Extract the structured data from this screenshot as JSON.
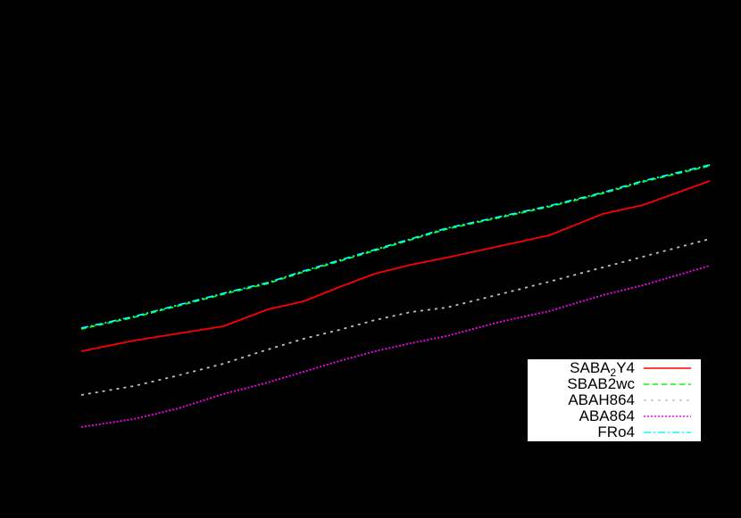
{
  "chart_data": {
    "type": "line",
    "title": "",
    "xlabel": "",
    "ylabel": "",
    "grid": false,
    "legend_position": "lower right",
    "note": "Axes, ticks and labels are not visible (black on black); values given in plot pixel coordinates (x: left→right, y: higher value = higher on screen, measured as 581 - pixel_y).",
    "x": [
      91,
      150,
      200,
      250,
      300,
      340,
      380,
      420,
      460,
      500,
      560,
      615,
      675,
      720,
      795
    ],
    "series": [
      {
        "name": "SABA2Y4",
        "color": "#ff0000",
        "style": "solid",
        "values": [
          187,
          199,
          207,
          215,
          234,
          243,
          259,
          274,
          284,
          292,
          305,
          317,
          341,
          351,
          378
        ]
      },
      {
        "name": "SBAB2wc",
        "color": "#00ff00",
        "style": "dashed",
        "values": [
          212,
          225,
          238,
          251,
          263,
          276,
          288,
          300,
          312,
          324,
          337,
          349,
          364,
          377,
          395
        ]
      },
      {
        "name": "ABAH864",
        "color": "#c0c0c0",
        "style": "dotted-dash",
        "values": [
          138,
          148,
          160,
          173,
          189,
          201,
          211,
          222,
          231,
          236,
          251,
          265,
          281,
          293,
          313
        ]
      },
      {
        "name": "ABA864",
        "color": "#ff00ff",
        "style": "dotted",
        "values": [
          102,
          111,
          123,
          139,
          152,
          164,
          176,
          187,
          196,
          204,
          220,
          232,
          250,
          261,
          283
        ]
      },
      {
        "name": "FRo4",
        "color": "#00ffff",
        "style": "dash-dot",
        "values": [
          213,
          226,
          239,
          252,
          264,
          277,
          289,
          301,
          313,
          325,
          338,
          350,
          365,
          378,
          396
        ]
      }
    ],
    "xlim": [
      91,
      795
    ]
  },
  "legend": {
    "items": [
      {
        "label_main": "SABA",
        "label_sub": "2",
        "label_tail": "Y4",
        "color": "#ff0000",
        "dash": ""
      },
      {
        "label_main": "SBAB2wc",
        "color": "#00ff00",
        "dash": "6 4"
      },
      {
        "label_main": "ABAH864",
        "color": "#c0c0c0",
        "dash": "3 5"
      },
      {
        "label_main": "ABA864",
        "color": "#ff00ff",
        "dash": "2 2"
      },
      {
        "label_main": "FRo4",
        "color": "#00ffff",
        "dash": "8 3 2 3"
      }
    ]
  }
}
